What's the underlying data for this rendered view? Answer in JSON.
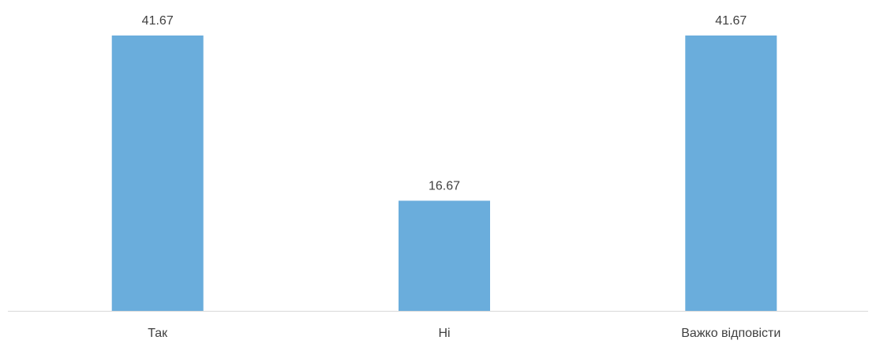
{
  "colors": {
    "bar": "#6aaddc",
    "axis": "#d9d9d9",
    "text": "#404040",
    "background": "#ffffff"
  },
  "chart_data": {
    "type": "bar",
    "categories": [
      "Так",
      "Ні",
      "Важко відповісти"
    ],
    "values": [
      41.67,
      16.67,
      41.67
    ],
    "value_labels": [
      "41.67",
      "16.67",
      "41.67"
    ],
    "title": "",
    "xlabel": "",
    "ylabel": "",
    "ylim": [
      0,
      41.67
    ],
    "grid": false,
    "legend": "none",
    "data_labels": true
  }
}
